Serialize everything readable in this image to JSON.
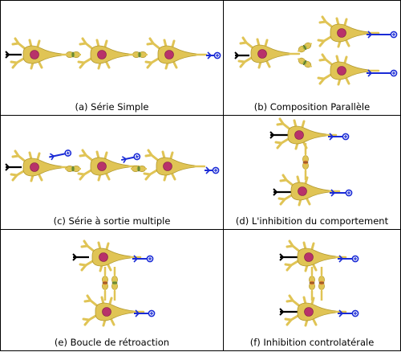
{
  "colors": {
    "soma": "#e0c455",
    "soma_edge": "#b39a2e",
    "nucleus": "#b8326a",
    "nucleus_edge": "#7f1d48",
    "input_arrow": "#000000",
    "output_terminal": "#1a2bd6",
    "excitatory_synapse": "#8fb03a",
    "inhibitory_synapse": "#d9742a",
    "border": "#000000"
  },
  "panels": [
    {
      "key": "a",
      "caption": "(a) Série Simple"
    },
    {
      "key": "b",
      "caption": "(b) Composition Parallèle"
    },
    {
      "key": "c",
      "caption": "(c) Série à sortie multiple"
    },
    {
      "key": "d",
      "caption": "(d) L'inhibition du comportement"
    },
    {
      "key": "e",
      "caption": "(e) Boucle de rétroaction"
    },
    {
      "key": "f",
      "caption": "(f) Inhibition controlatérale"
    }
  ]
}
